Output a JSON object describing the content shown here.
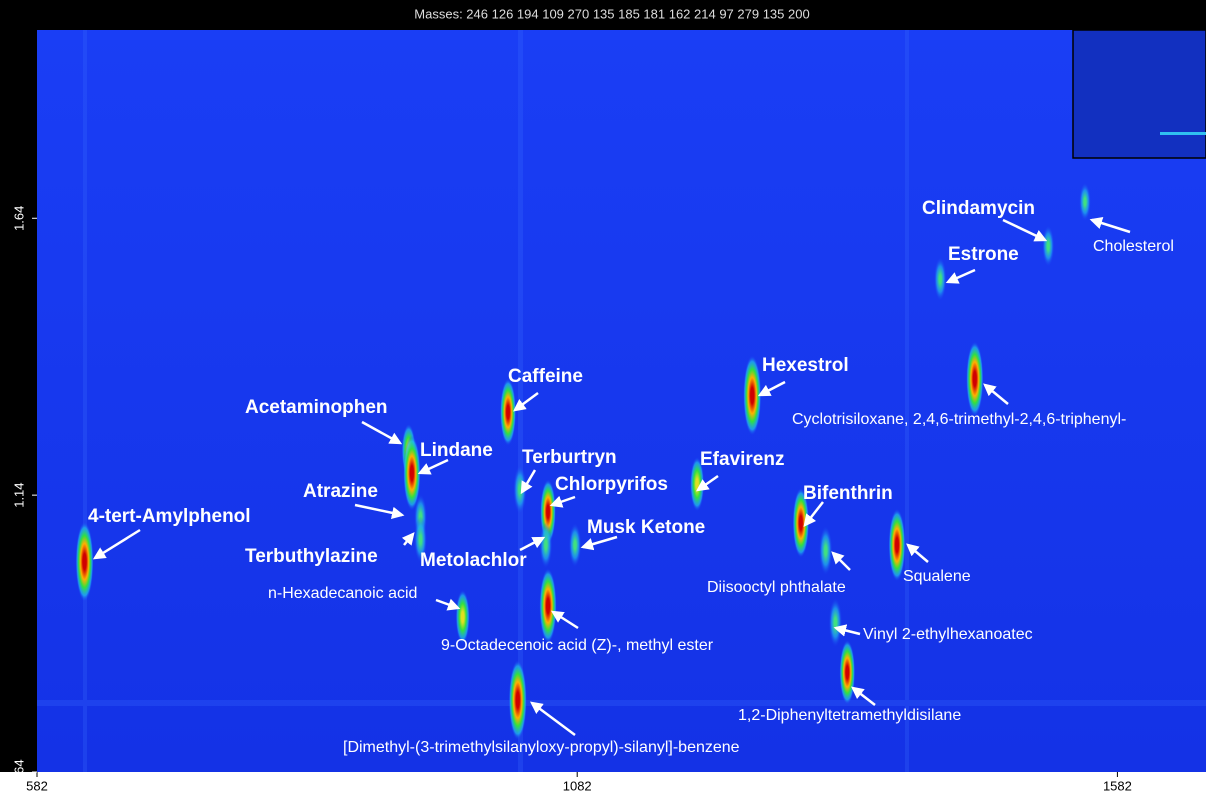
{
  "chart_data": {
    "type": "contour",
    "title": "Masses: 246 126 194 109 270 135 185 181 162 214 97 279 135 200",
    "xlim": [
      582,
      1664
    ],
    "ylim": [
      0.64,
      1.98
    ],
    "xticks": [
      582,
      1082,
      1582
    ],
    "yticks": [
      0.64,
      1.14,
      1.64
    ],
    "labels": [
      "4-tert-Amylphenol",
      "Acetaminophen",
      "Lindane",
      "Atrazine",
      "Terbuthylazine",
      "Caffeine",
      "Terburtryn",
      "Chlorpyrifos",
      "Metolachlor",
      "Musk Ketone",
      "Efavirenz",
      "Hexestrol",
      "Bifenthrin",
      "Diisooctyl phthalate",
      "Squalene",
      "Cyclotrisiloxane, 2,4,6-trimethyl-2,4,6-triphenyl-",
      "Estrone",
      "Clindamycin",
      "Cholesterol",
      "n-Hexadecanoic acid",
      "9-Octadecenoic acid (Z)-, methyl ester",
      "Vinyl 2-ethylhexanoatec",
      "1,2-Diphenyltetramethyldisilane",
      "[Dimethyl-(3-trimethylsilanyloxy-propyl)-silanyl]-benzene"
    ],
    "x": [
      626,
      926,
      929,
      937,
      937,
      1018,
      1029,
      1055,
      1053,
      1080,
      1193,
      1244,
      1289,
      1312,
      1378,
      1450,
      1418,
      1518,
      1552,
      976,
      1055,
      1321,
      1332,
      1027
    ],
    "values": [
      1.02,
      1.22,
      1.18,
      1.1,
      1.06,
      1.29,
      1.15,
      1.11,
      1.05,
      1.05,
      1.16,
      1.32,
      1.09,
      1.04,
      1.05,
      1.35,
      1.53,
      1.59,
      1.67,
      0.92,
      0.94,
      0.91,
      0.82,
      0.77
    ],
    "intensity": [
      1,
      0.5,
      0.9,
      0.35,
      0.35,
      0.75,
      0.4,
      0.7,
      0.35,
      0.3,
      0.5,
      1,
      0.8,
      0.4,
      0.85,
      0.9,
      0.3,
      0.25,
      0.2,
      0.5,
      0.9,
      0.4,
      0.7,
      1
    ]
  }
}
